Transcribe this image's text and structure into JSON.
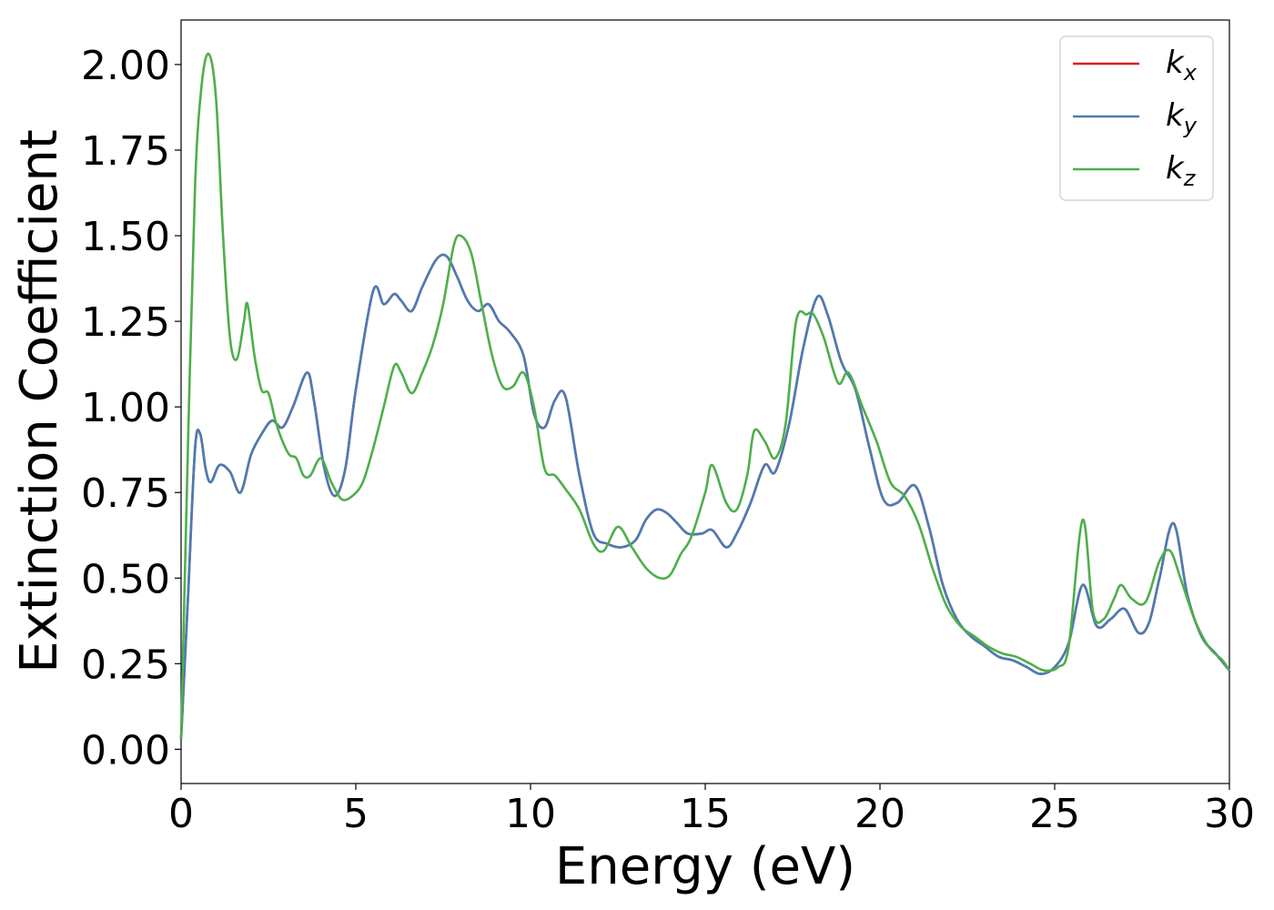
{
  "chart_data": {
    "type": "line",
    "title": "",
    "xlabel": "Energy (eV)",
    "ylabel": "Extinction Coefficient",
    "xlim": [
      0,
      30
    ],
    "ylim": [
      -0.1,
      2.13
    ],
    "xticks": [
      0,
      5,
      10,
      15,
      20,
      25,
      30
    ],
    "xtick_labels": [
      "0",
      "5",
      "10",
      "15",
      "20",
      "25",
      "30"
    ],
    "yticks": [
      0.0,
      0.25,
      0.5,
      0.75,
      1.0,
      1.25,
      1.5,
      1.75,
      2.0
    ],
    "ytick_labels": [
      "0.00",
      "0.25",
      "0.50",
      "0.75",
      "1.00",
      "1.25",
      "1.50",
      "1.75",
      "2.00"
    ],
    "grid": false,
    "legend_position": "top-right",
    "series": [
      {
        "name": "k",
        "subscript": "x",
        "color": "#e41a1c",
        "x": [
          0,
          0.2,
          0.4,
          0.55,
          0.7,
          0.85,
          1.1,
          1.4,
          1.7,
          2.0,
          2.3,
          2.6,
          2.9,
          3.2,
          3.6,
          3.8,
          4.1,
          4.4,
          4.7,
          5.0,
          5.5,
          5.8,
          6.1,
          6.3,
          6.6,
          6.9,
          7.3,
          7.6,
          7.9,
          8.2,
          8.5,
          8.8,
          9.1,
          9.4,
          9.8,
          10.1,
          10.4,
          10.7,
          11.0,
          11.4,
          11.8,
          12.2,
          12.6,
          13.0,
          13.3,
          13.6,
          13.9,
          14.2,
          14.5,
          14.9,
          15.2,
          15.6,
          15.9,
          16.3,
          16.7,
          17.0,
          17.4,
          17.8,
          18.2,
          18.5,
          18.9,
          19.3,
          19.7,
          20.1,
          20.5,
          21.0,
          21.4,
          21.8,
          22.2,
          22.6,
          23.0,
          23.4,
          23.8,
          24.2,
          24.6,
          25.0,
          25.4,
          25.8,
          26.2,
          26.6,
          27.0,
          27.4,
          27.7,
          28.0,
          28.4,
          28.8,
          29.2,
          29.6,
          30.0
        ],
        "values": [
          0.03,
          0.45,
          0.88,
          0.92,
          0.82,
          0.78,
          0.83,
          0.81,
          0.75,
          0.86,
          0.92,
          0.96,
          0.94,
          1.0,
          1.1,
          1.02,
          0.82,
          0.74,
          0.82,
          1.05,
          1.34,
          1.3,
          1.33,
          1.31,
          1.28,
          1.35,
          1.43,
          1.44,
          1.38,
          1.31,
          1.28,
          1.3,
          1.25,
          1.22,
          1.15,
          0.98,
          0.94,
          1.02,
          1.03,
          0.8,
          0.63,
          0.6,
          0.59,
          0.61,
          0.67,
          0.7,
          0.69,
          0.66,
          0.63,
          0.63,
          0.64,
          0.59,
          0.63,
          0.72,
          0.83,
          0.81,
          0.95,
          1.17,
          1.32,
          1.27,
          1.13,
          1.05,
          0.88,
          0.73,
          0.72,
          0.77,
          0.65,
          0.48,
          0.38,
          0.33,
          0.3,
          0.27,
          0.26,
          0.24,
          0.22,
          0.24,
          0.31,
          0.48,
          0.36,
          0.38,
          0.41,
          0.34,
          0.37,
          0.5,
          0.66,
          0.45,
          0.33,
          0.28,
          0.23
        ]
      },
      {
        "name": "k",
        "subscript": "y",
        "color": "#4a7cb5",
        "x": [
          0,
          0.2,
          0.4,
          0.55,
          0.7,
          0.85,
          1.1,
          1.4,
          1.7,
          2.0,
          2.3,
          2.6,
          2.9,
          3.2,
          3.6,
          3.8,
          4.1,
          4.4,
          4.7,
          5.0,
          5.5,
          5.8,
          6.1,
          6.3,
          6.6,
          6.9,
          7.3,
          7.6,
          7.9,
          8.2,
          8.5,
          8.8,
          9.1,
          9.4,
          9.8,
          10.1,
          10.4,
          10.7,
          11.0,
          11.4,
          11.8,
          12.2,
          12.6,
          13.0,
          13.3,
          13.6,
          13.9,
          14.2,
          14.5,
          14.9,
          15.2,
          15.6,
          15.9,
          16.3,
          16.7,
          17.0,
          17.4,
          17.8,
          18.2,
          18.5,
          18.9,
          19.3,
          19.7,
          20.1,
          20.5,
          21.0,
          21.4,
          21.8,
          22.2,
          22.6,
          23.0,
          23.4,
          23.8,
          24.2,
          24.6,
          25.0,
          25.4,
          25.8,
          26.2,
          26.6,
          27.0,
          27.4,
          27.7,
          28.0,
          28.4,
          28.8,
          29.2,
          29.6,
          30.0
        ],
        "values": [
          0.03,
          0.45,
          0.88,
          0.92,
          0.82,
          0.78,
          0.83,
          0.81,
          0.75,
          0.86,
          0.92,
          0.96,
          0.94,
          1.0,
          1.1,
          1.02,
          0.82,
          0.74,
          0.82,
          1.05,
          1.34,
          1.3,
          1.33,
          1.31,
          1.28,
          1.35,
          1.43,
          1.44,
          1.38,
          1.31,
          1.28,
          1.3,
          1.25,
          1.22,
          1.15,
          0.98,
          0.94,
          1.02,
          1.03,
          0.8,
          0.63,
          0.6,
          0.59,
          0.61,
          0.67,
          0.7,
          0.69,
          0.66,
          0.63,
          0.63,
          0.64,
          0.59,
          0.63,
          0.72,
          0.83,
          0.81,
          0.95,
          1.17,
          1.32,
          1.27,
          1.13,
          1.05,
          0.88,
          0.73,
          0.72,
          0.77,
          0.65,
          0.48,
          0.38,
          0.33,
          0.3,
          0.27,
          0.26,
          0.24,
          0.22,
          0.24,
          0.31,
          0.48,
          0.36,
          0.38,
          0.41,
          0.34,
          0.37,
          0.5,
          0.66,
          0.45,
          0.33,
          0.28,
          0.23
        ]
      },
      {
        "name": "k",
        "subscript": "z",
        "color": "#4daf4a",
        "x": [
          0,
          0.2,
          0.4,
          0.6,
          0.8,
          1.0,
          1.2,
          1.4,
          1.6,
          1.8,
          1.9,
          2.1,
          2.3,
          2.5,
          2.7,
          2.9,
          3.1,
          3.3,
          3.5,
          3.7,
          4.0,
          4.3,
          4.6,
          4.9,
          5.2,
          5.5,
          5.8,
          6.1,
          6.3,
          6.6,
          6.9,
          7.2,
          7.5,
          7.8,
          8.0,
          8.3,
          8.6,
          8.9,
          9.2,
          9.5,
          9.8,
          10.1,
          10.4,
          10.7,
          11.0,
          11.4,
          11.8,
          12.1,
          12.5,
          12.9,
          13.3,
          13.7,
          14.0,
          14.3,
          14.6,
          15.0,
          15.2,
          15.6,
          15.9,
          16.2,
          16.4,
          16.7,
          17.0,
          17.3,
          17.6,
          17.9,
          18.1,
          18.4,
          18.8,
          19.1,
          19.5,
          19.9,
          20.3,
          20.7,
          21.1,
          21.5,
          21.9,
          22.3,
          22.7,
          23.1,
          23.5,
          23.9,
          24.3,
          24.7,
          25.1,
          25.4,
          25.8,
          26.1,
          26.4,
          26.7,
          26.9,
          27.2,
          27.6,
          28.0,
          28.3,
          28.6,
          29.0,
          29.4,
          29.8,
          30.0
        ],
        "values": [
          0.03,
          0.9,
          1.65,
          1.95,
          2.03,
          1.9,
          1.5,
          1.2,
          1.14,
          1.25,
          1.3,
          1.15,
          1.05,
          1.04,
          0.96,
          0.9,
          0.86,
          0.85,
          0.8,
          0.8,
          0.85,
          0.78,
          0.73,
          0.74,
          0.78,
          0.88,
          1.0,
          1.12,
          1.1,
          1.04,
          1.1,
          1.18,
          1.3,
          1.47,
          1.5,
          1.45,
          1.3,
          1.15,
          1.06,
          1.06,
          1.1,
          1.0,
          0.82,
          0.8,
          0.76,
          0.7,
          0.6,
          0.58,
          0.65,
          0.59,
          0.53,
          0.5,
          0.51,
          0.57,
          0.62,
          0.75,
          0.83,
          0.72,
          0.7,
          0.8,
          0.93,
          0.9,
          0.85,
          0.95,
          1.25,
          1.27,
          1.27,
          1.2,
          1.07,
          1.1,
          1.0,
          0.9,
          0.78,
          0.74,
          0.66,
          0.53,
          0.42,
          0.36,
          0.33,
          0.3,
          0.28,
          0.27,
          0.25,
          0.23,
          0.24,
          0.3,
          0.67,
          0.4,
          0.38,
          0.44,
          0.48,
          0.44,
          0.43,
          0.55,
          0.58,
          0.5,
          0.38,
          0.3,
          0.26,
          0.23
        ]
      }
    ]
  }
}
